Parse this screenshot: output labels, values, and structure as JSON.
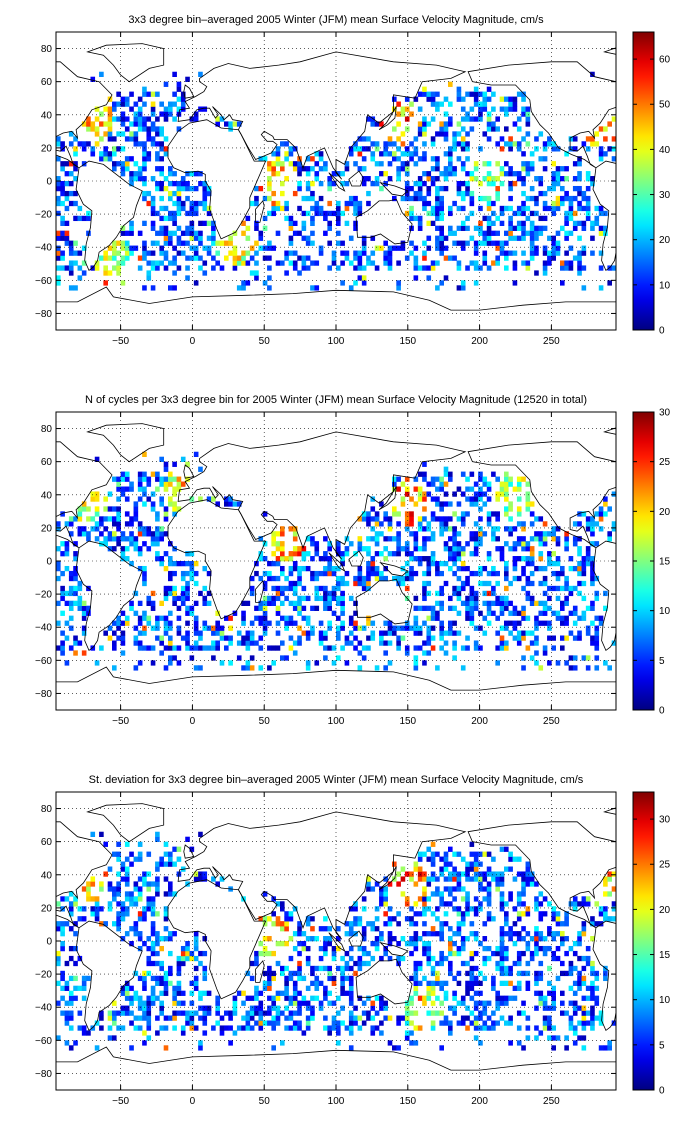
{
  "figure": {
    "colormap": "jet",
    "map_note": "coastlines, dotted grid; colored 3x3 degree bins mostly in ocean regions"
  },
  "chart_data": [
    {
      "type": "heatmap",
      "title": "3x3 degree bin–averaged 2005 Winter (JFM) mean Surface Velocity Magnitude, cm/s",
      "xlim": [
        -95,
        295
      ],
      "ylim": [
        -90,
        90
      ],
      "xticks": [
        -50,
        0,
        50,
        100,
        150,
        200,
        250
      ],
      "yticks": [
        -80,
        -60,
        -40,
        -20,
        0,
        20,
        40,
        60,
        80
      ],
      "grid": true,
      "colorbar": {
        "min": 0,
        "max": 66,
        "ticks": [
          0,
          10,
          20,
          30,
          40,
          50,
          60
        ]
      },
      "seed": 11,
      "hotspots": [
        {
          "x": 60,
          "y": 0,
          "v": 58
        },
        {
          "x": 145,
          "y": 36,
          "v": 62
        },
        {
          "x": -70,
          "y": 38,
          "v": 55
        },
        {
          "x": 30,
          "y": -38,
          "v": 50
        },
        {
          "x": -55,
          "y": -50,
          "v": 45
        },
        {
          "x": 205,
          "y": 0,
          "v": 42
        },
        {
          "x": 285,
          "y": 35,
          "v": 55
        }
      ]
    },
    {
      "type": "heatmap",
      "title": "N of cycles per 3x3 degree bin for 2005 Winter (JFM) mean Surface Velocity Magnitude (12520 in total)",
      "xlim": [
        -95,
        295
      ],
      "ylim": [
        -90,
        90
      ],
      "xticks": [
        -50,
        0,
        50,
        100,
        150,
        200,
        250
      ],
      "yticks": [
        -80,
        -60,
        -40,
        -20,
        0,
        20,
        40,
        60,
        80
      ],
      "grid": true,
      "colorbar": {
        "min": 0,
        "max": 30,
        "ticks": [
          0,
          5,
          10,
          15,
          20,
          25,
          30
        ]
      },
      "seed": 23,
      "hotspots": [
        {
          "x": 65,
          "y": 12,
          "v": 27
        },
        {
          "x": 150,
          "y": 36,
          "v": 28
        },
        {
          "x": -72,
          "y": 38,
          "v": 22
        },
        {
          "x": 225,
          "y": 38,
          "v": 20
        },
        {
          "x": -5,
          "y": 43,
          "v": 24
        }
      ]
    },
    {
      "type": "heatmap",
      "title": "St. deviation for 3x3 degree bin–averaged 2005 Winter (JFM) mean Surface Velocity Magnitude, cm/s",
      "xlim": [
        -95,
        295
      ],
      "ylim": [
        -90,
        90
      ],
      "xticks": [
        -50,
        0,
        50,
        100,
        150,
        200,
        250
      ],
      "yticks": [
        -80,
        -60,
        -40,
        -20,
        0,
        20,
        40,
        60,
        80
      ],
      "grid": true,
      "colorbar": {
        "min": 0,
        "max": 33,
        "ticks": [
          0,
          5,
          10,
          15,
          20,
          25,
          30
        ]
      },
      "seed": 37,
      "hotspots": [
        {
          "x": 55,
          "y": 2,
          "v": 30
        },
        {
          "x": 150,
          "y": 36,
          "v": 31
        },
        {
          "x": -72,
          "y": 38,
          "v": 28
        },
        {
          "x": 285,
          "y": 35,
          "v": 30
        },
        {
          "x": 160,
          "y": -40,
          "v": 22
        }
      ]
    }
  ]
}
